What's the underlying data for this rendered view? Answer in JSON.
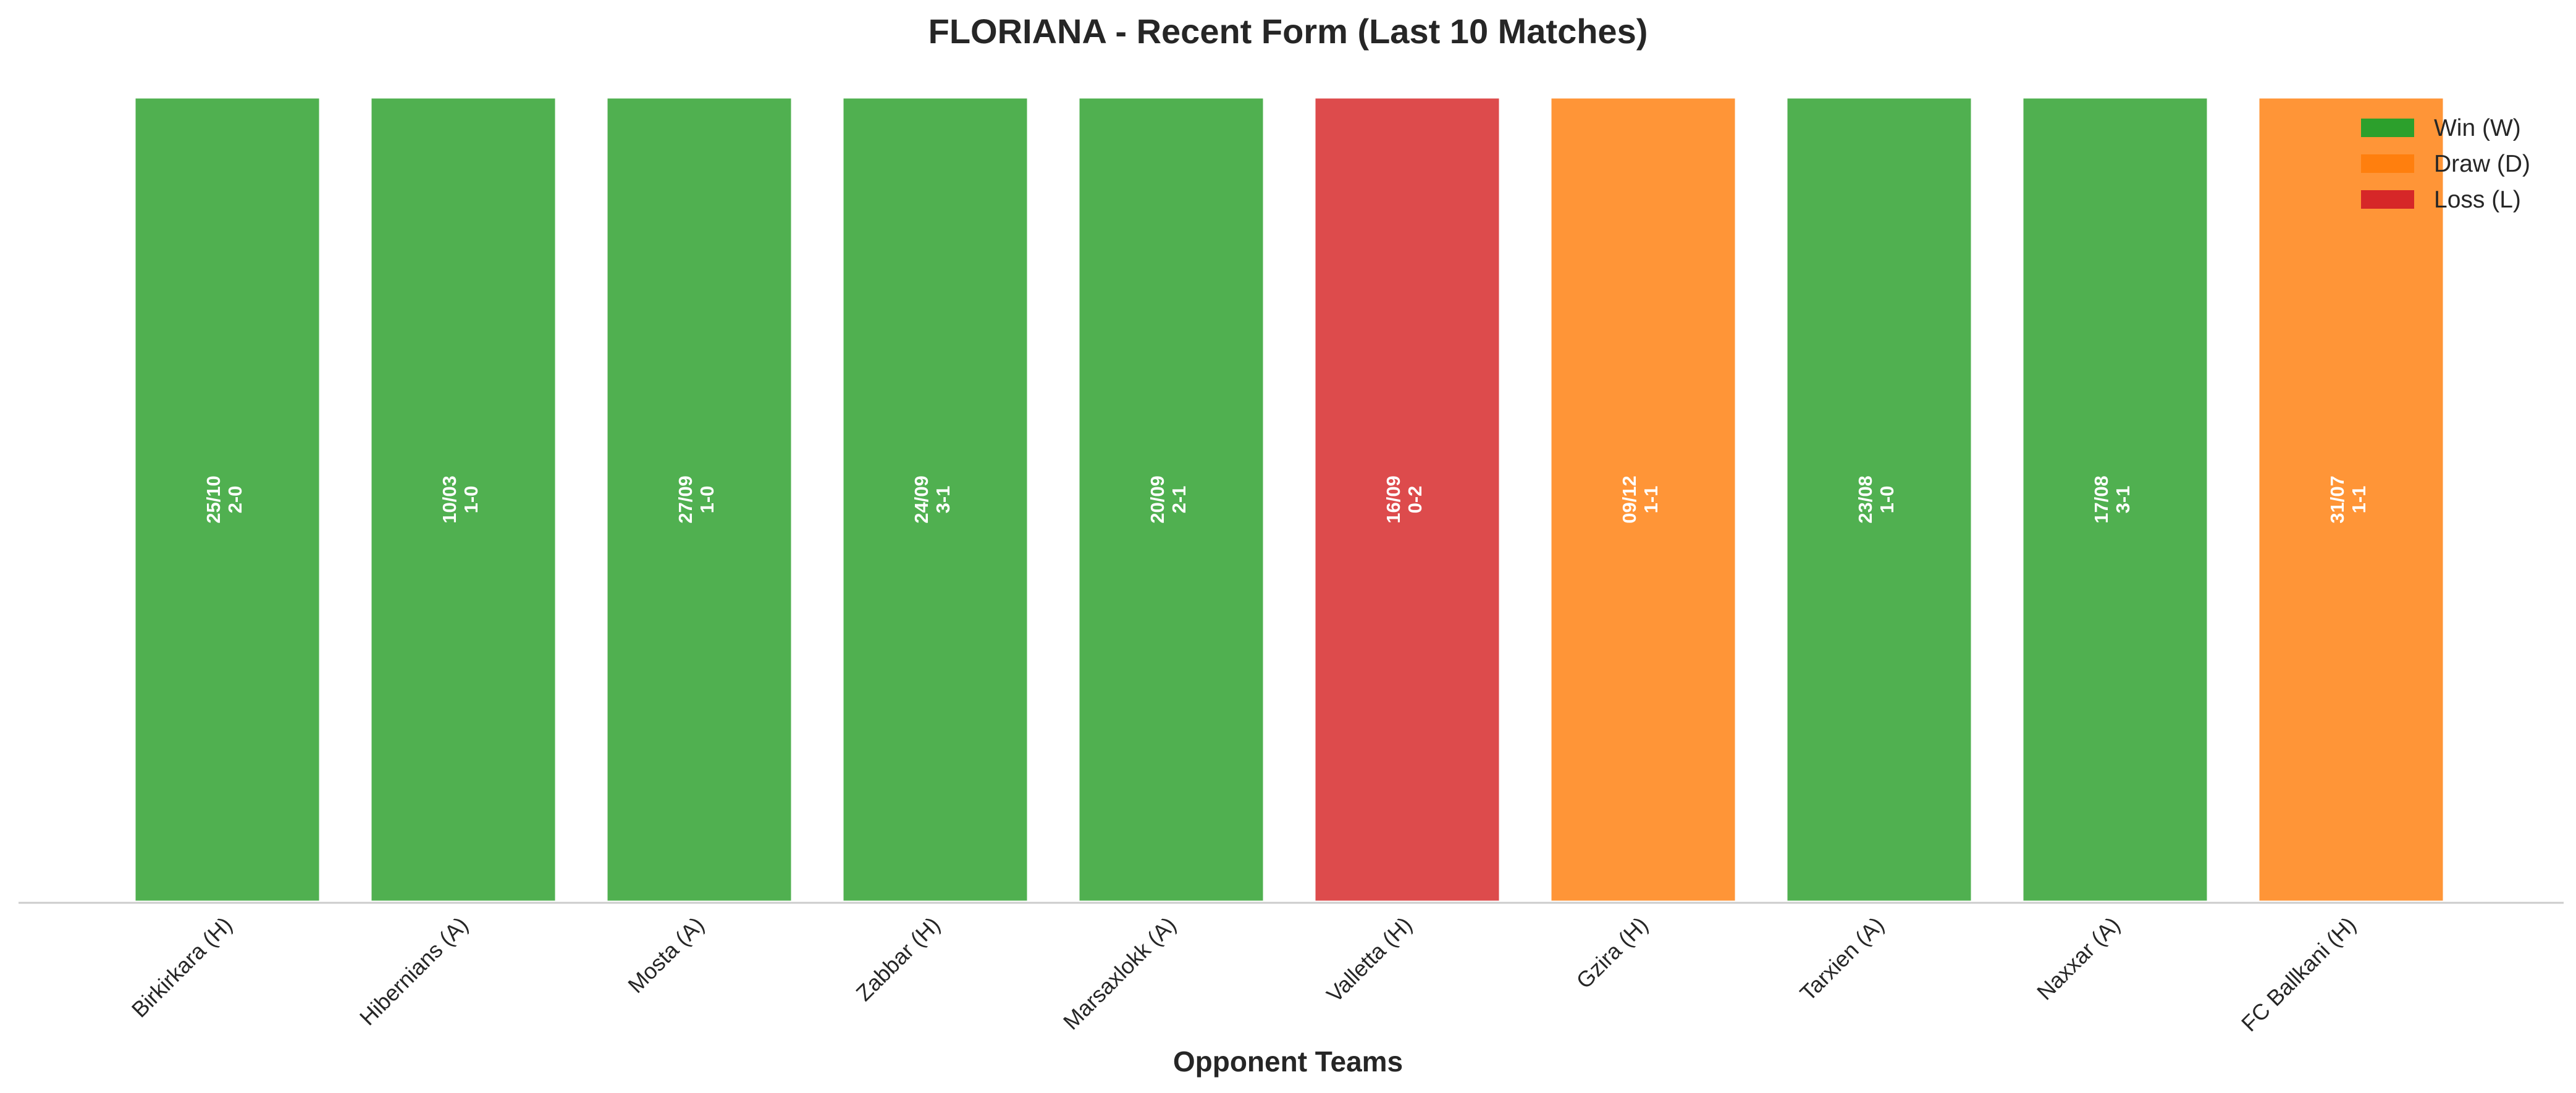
{
  "chart_data": {
    "type": "bar",
    "title": "FLORIANA - Recent Form (Last 10 Matches)",
    "xlabel": "Opponent Teams",
    "ylabel": "",
    "ylim": [
      0,
      1
    ],
    "grid": false,
    "legend_position": "top-right",
    "categories": [
      "Birkirkara (H)",
      "Hibernians (A)",
      "Mosta (A)",
      "Zabbar (H)",
      "Marsaxlokk (A)",
      "Valletta (H)",
      "Gzira (H)",
      "Tarxien (A)",
      "Naxxar (A)",
      "FC Ballkani (H)"
    ],
    "values": [
      1,
      1,
      1,
      1,
      1,
      1,
      1,
      1,
      1,
      1
    ],
    "results": [
      "W",
      "W",
      "W",
      "W",
      "W",
      "L",
      "D",
      "W",
      "W",
      "D"
    ],
    "dates": [
      "25/10",
      "10/03",
      "27/09",
      "24/09",
      "20/09",
      "16/09",
      "09/12",
      "23/08",
      "17/08",
      "31/07"
    ],
    "scores": [
      "2-0",
      "1-0",
      "1-0",
      "3-1",
      "2-1",
      "0-2",
      "1-1",
      "1-0",
      "3-1",
      "1-1"
    ],
    "legend": [
      {
        "key": "W",
        "label": "Win (W)",
        "color": "#2ca02c"
      },
      {
        "key": "D",
        "label": "Draw (D)",
        "color": "#ff7f0e"
      },
      {
        "key": "L",
        "label": "Loss (L)",
        "color": "#d62728"
      }
    ]
  }
}
